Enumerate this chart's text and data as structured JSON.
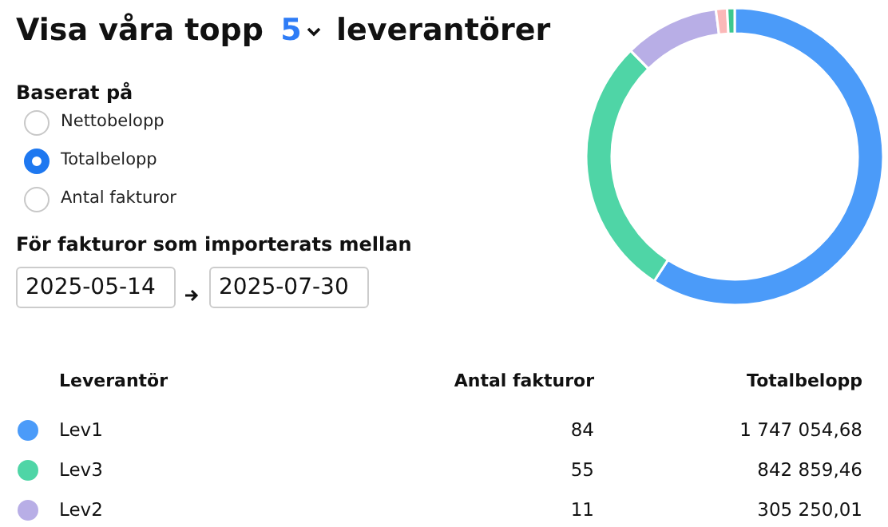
{
  "chart_data": {
    "type": "donut",
    "title": "Visa våra topp 5 leverantörer",
    "legend_title": "Leverantör",
    "categories": [
      "Lev1",
      "Lev3",
      "Lev2",
      null,
      null
    ],
    "values": [
      1747054.68,
      842859.46,
      305250.01,
      36000,
      24000
    ],
    "colors": [
      "#4b9bf9",
      "#4fd5a6",
      "#b8aee6",
      "#fbb8b8",
      "#3cc88e"
    ],
    "value_labels": [
      "1 747 054,68",
      "842 859,46",
      "305 250,01",
      null,
      null
    ],
    "legend": "bottom",
    "annotations": [
      "Baserat på",
      "Nettobelopp",
      "Totalbelopp",
      "Antal fakturor",
      "För fakturor som importerats mellan",
      "2025-05-14",
      "2025-07-30",
      "Antal fakturor",
      "Totalbelopp",
      "84",
      "55",
      "11"
    ]
  }
}
